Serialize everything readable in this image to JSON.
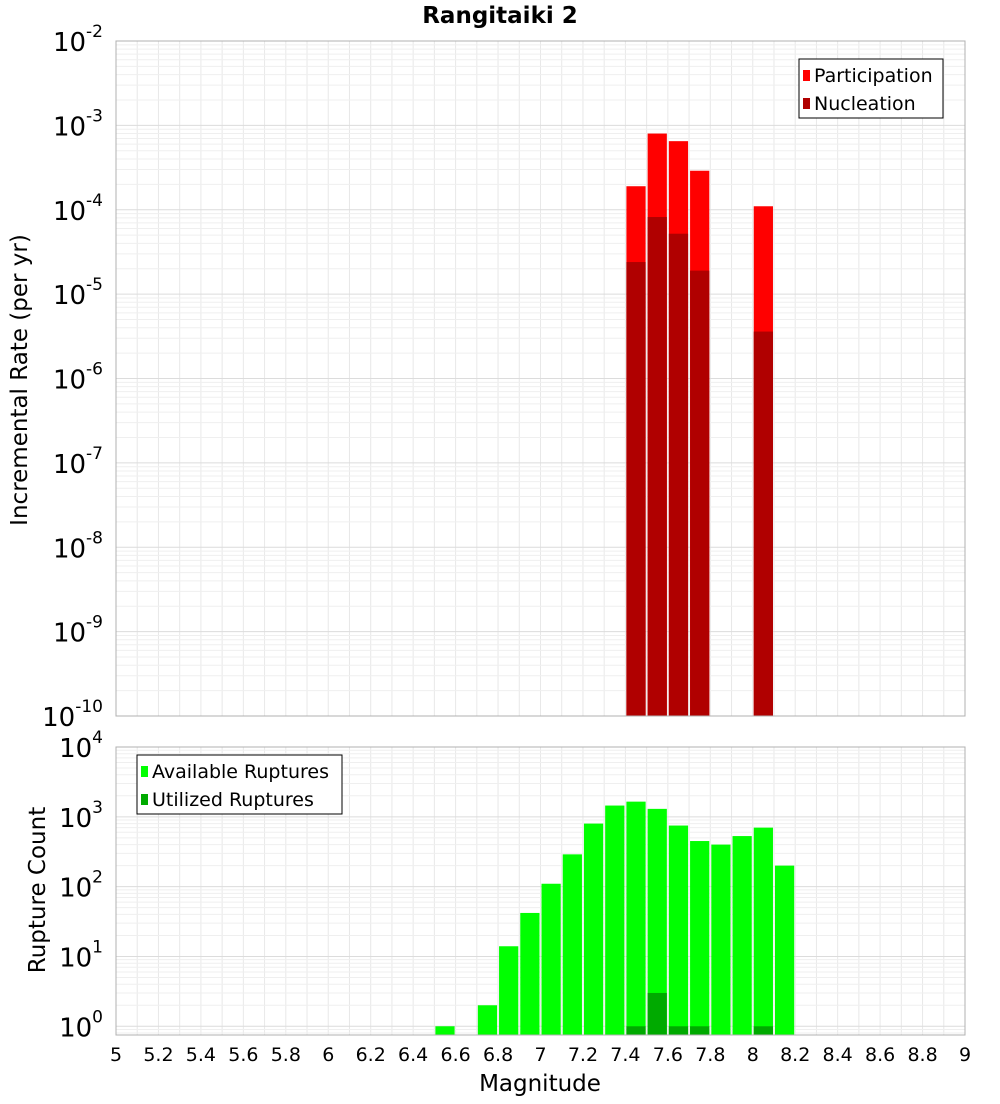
{
  "chart_data": [
    {
      "type": "bar",
      "title": "Rangitaiki 2",
      "xlabel": "Magnitude",
      "ylabel": "Incremental Rate (per yr)",
      "yscale": "log",
      "xlim": [
        5,
        9
      ],
      "ylim": [
        1e-10,
        0.01
      ],
      "bar_width": 0.1,
      "legend_position": "top-right",
      "y_ticks": [
        {
          "base": "10",
          "exp": "-10"
        },
        {
          "base": "10",
          "exp": "-9"
        },
        {
          "base": "10",
          "exp": "-8"
        },
        {
          "base": "10",
          "exp": "-7"
        },
        {
          "base": "10",
          "exp": "-6"
        },
        {
          "base": "10",
          "exp": "-5"
        },
        {
          "base": "10",
          "exp": "-4"
        },
        {
          "base": "10",
          "exp": "-3"
        },
        {
          "base": "10",
          "exp": "-2"
        }
      ],
      "series": [
        {
          "name": "Participation",
          "color": "#ff0000",
          "x": [
            7.45,
            7.55,
            7.65,
            7.75,
            8.05
          ],
          "values": [
            0.00019,
            0.0008,
            0.00065,
            0.00029,
            0.00011
          ]
        },
        {
          "name": "Nucleation",
          "color": "#b00000",
          "x": [
            7.45,
            7.55,
            7.65,
            7.75,
            8.05
          ],
          "values": [
            2.4e-05,
            8.2e-05,
            5.2e-05,
            1.9e-05,
            3.6e-06
          ]
        }
      ]
    },
    {
      "type": "bar",
      "xlabel": "Magnitude",
      "ylabel": "Rupture Count",
      "yscale": "log",
      "xlim": [
        5,
        9
      ],
      "ylim": [
        0.75,
        10000
      ],
      "bar_width": 0.1,
      "legend_position": "top-left",
      "x_tick_labels": [
        "5",
        "5.2",
        "5.4",
        "5.6",
        "5.8",
        "6",
        "6.2",
        "6.4",
        "6.6",
        "6.8",
        "7",
        "7.2",
        "7.4",
        "7.6",
        "7.8",
        "8",
        "8.2",
        "8.4",
        "8.6",
        "8.8",
        "9"
      ],
      "y_ticks": [
        {
          "base": "10",
          "exp": "0"
        },
        {
          "base": "10",
          "exp": "1"
        },
        {
          "base": "10",
          "exp": "2"
        },
        {
          "base": "10",
          "exp": "3"
        },
        {
          "base": "10",
          "exp": "4"
        }
      ],
      "series": [
        {
          "name": "Available Ruptures",
          "color": "#00ff00",
          "x": [
            6.55,
            6.75,
            6.85,
            6.95,
            7.05,
            7.15,
            7.25,
            7.35,
            7.45,
            7.55,
            7.65,
            7.75,
            7.85,
            7.95,
            8.05,
            8.15
          ],
          "values": [
            1,
            2,
            14,
            42,
            110,
            290,
            800,
            1450,
            1650,
            1300,
            750,
            450,
            400,
            530,
            700,
            200
          ]
        },
        {
          "name": "Utilized Ruptures",
          "color": "#00aa00",
          "x": [
            7.45,
            7.55,
            7.65,
            7.75,
            8.05
          ],
          "values": [
            1,
            3,
            1,
            1,
            1
          ]
        }
      ]
    }
  ]
}
